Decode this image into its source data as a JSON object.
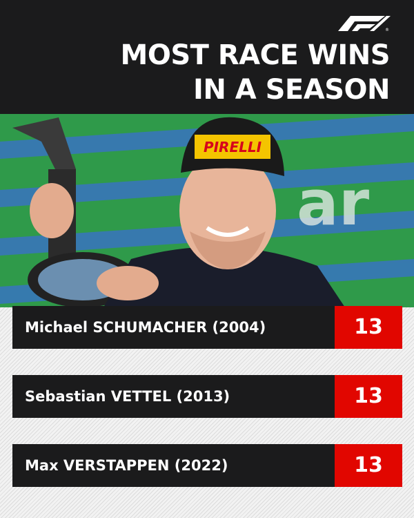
{
  "header": {
    "title": [
      "MOST RACE WINS",
      "IN A SEASON"
    ]
  },
  "rows": [
    {
      "driver": "Michael SCHUMACHER (2004)",
      "wins": 13
    },
    {
      "driver": "Sebastian VETTEL (2013)",
      "wins": 13
    },
    {
      "driver": "Max VERSTAPPEN (2022)",
      "wins": 13
    }
  ]
}
